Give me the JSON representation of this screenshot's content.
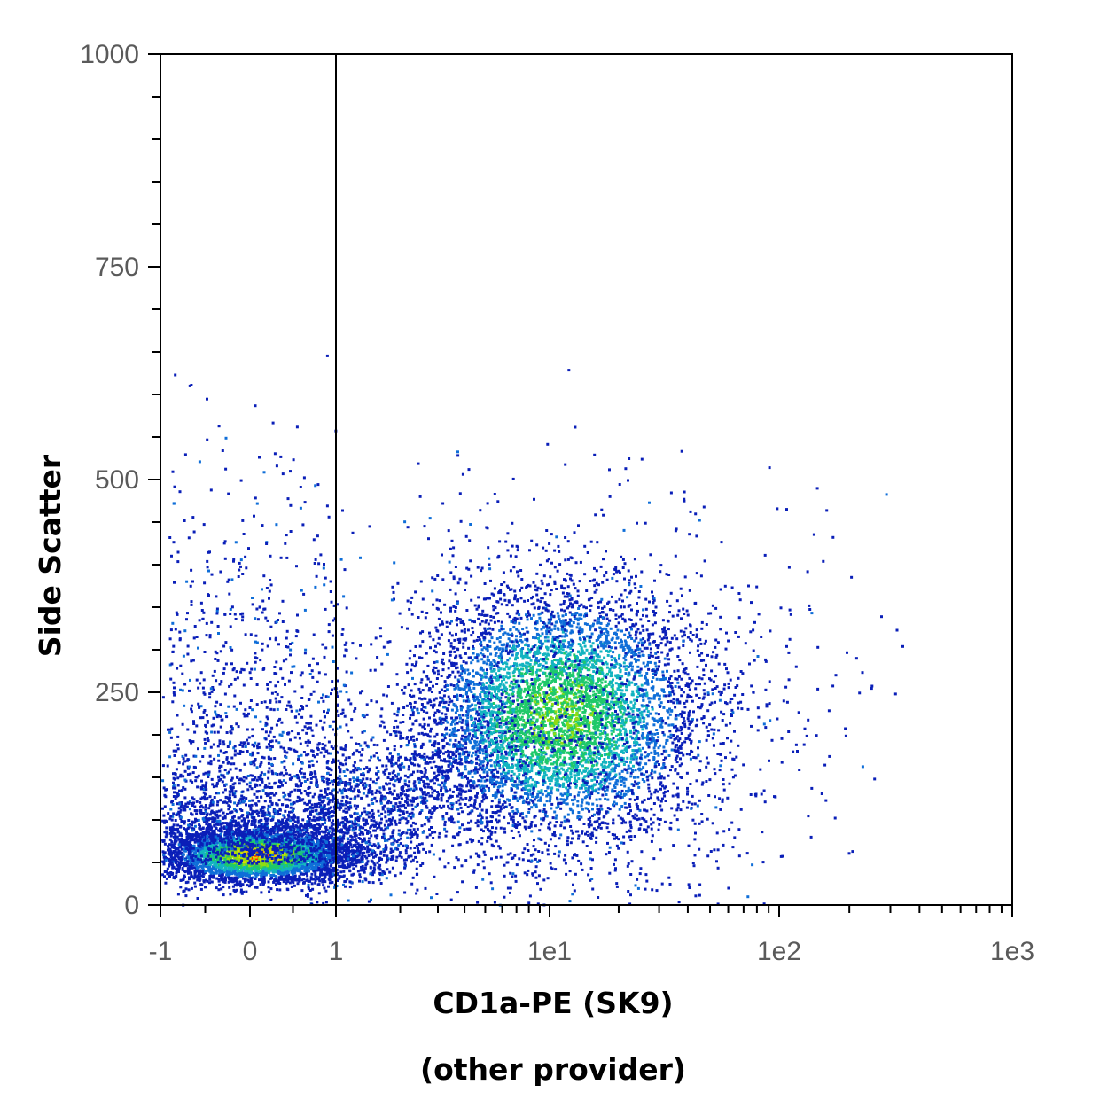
{
  "chart_data": {
    "type": "scatter",
    "subtype": "flow-cytometry-density-dot-plot",
    "xlabel": "CD1a-PE (SK9)",
    "xlabel_note": "(other provider)",
    "ylabel": "Side Scatter",
    "x_scale": "biexponential (linear near zero, log above 1)",
    "y_scale": "linear",
    "ylim": [
      0,
      1000
    ],
    "xlim": [
      -1,
      1000
    ],
    "x_ticks": [
      {
        "value": -1,
        "label": "-1"
      },
      {
        "value": 0,
        "label": "0"
      },
      {
        "value": 1,
        "label": "1"
      },
      {
        "value": 10,
        "label": "1e1"
      },
      {
        "value": 100,
        "label": "1e2"
      },
      {
        "value": 1000,
        "label": "1e3"
      }
    ],
    "y_ticks": [
      {
        "value": 0,
        "label": "0"
      },
      {
        "value": 250,
        "label": "250"
      },
      {
        "value": 500,
        "label": "500"
      },
      {
        "value": 750,
        "label": "750"
      },
      {
        "value": 1000,
        "label": "1000"
      }
    ],
    "gate": {
      "type": "vertical-line",
      "x": 1
    },
    "grid": false,
    "legend": "none",
    "density_colors": [
      "#0a1fb8",
      "#0f6ed8",
      "#12b4c0",
      "#1fc96a",
      "#8fdc12",
      "#e6d800",
      "#ff2a00"
    ],
    "populations": [
      {
        "name_visible": false,
        "center_x": 0.2,
        "center_y": 60,
        "spread_x": 0.4,
        "spread_y": 20,
        "relative_density": "high",
        "peak_color": "red"
      },
      {
        "name_visible": false,
        "center_x": 11,
        "center_y": 220,
        "spread_x_decades": 0.3,
        "spread_y": 80,
        "relative_density": "medium",
        "peak_color": "green"
      }
    ]
  }
}
